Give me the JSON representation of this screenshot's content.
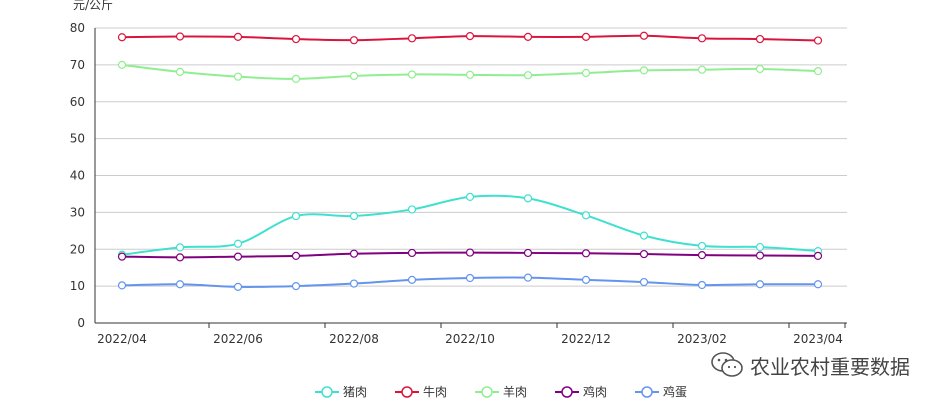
{
  "chart_data": {
    "type": "line",
    "ylabel": "元/公斤",
    "ylim": [
      0,
      80
    ],
    "yticks": [
      0,
      10,
      20,
      30,
      40,
      50,
      60,
      70,
      80
    ],
    "x": [
      "2022/04",
      "2022/05",
      "2022/06",
      "2022/07",
      "2022/08",
      "2022/09",
      "2022/10",
      "2022/11",
      "2022/12",
      "2023/01",
      "2023/02",
      "2023/03",
      "2023/04"
    ],
    "xtick_labels": [
      "2022/04",
      "2022/06",
      "2022/08",
      "2022/10",
      "2022/12",
      "2023/02",
      "2023/04"
    ],
    "grid": true,
    "legend_position": "bottom",
    "series": [
      {
        "name": "猪肉",
        "color": "#40E0D0",
        "values": [
          18.5,
          20.5,
          21.5,
          29.0,
          29.0,
          30.8,
          34.2,
          33.8,
          29.2,
          23.7,
          20.9,
          20.6,
          19.5
        ]
      },
      {
        "name": "牛肉",
        "color": "#DC143C",
        "values": [
          77.5,
          77.7,
          77.6,
          77.0,
          76.7,
          77.2,
          77.8,
          77.6,
          77.6,
          77.9,
          77.2,
          77.0,
          76.6
        ]
      },
      {
        "name": "羊肉",
        "color": "#90EE90",
        "values": [
          70.0,
          68.1,
          66.8,
          66.2,
          67.0,
          67.4,
          67.3,
          67.2,
          67.8,
          68.5,
          68.7,
          68.9,
          68.3
        ]
      },
      {
        "name": "鸡肉",
        "color": "#800080",
        "values": [
          18.0,
          17.8,
          18.0,
          18.2,
          18.8,
          19.0,
          19.1,
          19.0,
          18.9,
          18.7,
          18.4,
          18.3,
          18.2
        ]
      },
      {
        "name": "鸡蛋",
        "color": "#6495ED",
        "values": [
          10.2,
          10.5,
          9.8,
          10.0,
          10.7,
          11.7,
          12.2,
          12.3,
          11.7,
          11.1,
          10.3,
          10.5,
          10.5
        ]
      }
    ]
  },
  "watermark": {
    "text": "农业农村重要数据",
    "icon": "wechat-icon"
  }
}
